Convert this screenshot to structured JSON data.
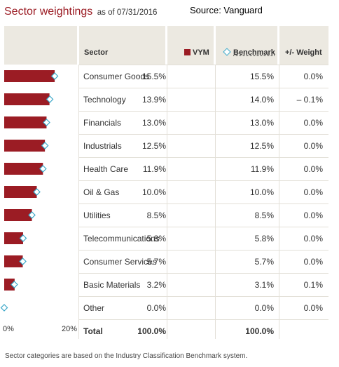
{
  "header": {
    "title": "Sector weightings",
    "as_of": "as of 07/31/2016",
    "source": "Source: Vanguard"
  },
  "columns": {
    "sector": "Sector",
    "vym": "VYM",
    "benchmark": "Benchmark",
    "diff": "+/- Weight"
  },
  "colors": {
    "vym_bar": "#9b1c24",
    "benchmark_marker": "#3aa7c8",
    "header_bg": "#ece9e1",
    "title": "#9b1c24"
  },
  "chart_data": {
    "type": "bar",
    "orientation": "horizontal",
    "xlim": [
      0,
      20
    ],
    "x_tick_labels": [
      "0%",
      "20%"
    ],
    "categories": [
      "Consumer Goods",
      "Technology",
      "Financials",
      "Industrials",
      "Health Care",
      "Oil & Gas",
      "Utilities",
      "Telecommunications",
      "Consumer Services",
      "Basic Materials",
      "Other"
    ],
    "series": [
      {
        "name": "VYM",
        "kind": "bar",
        "values": [
          15.5,
          13.9,
          13.0,
          12.5,
          11.9,
          10.0,
          8.5,
          5.8,
          5.7,
          3.2,
          0.0
        ]
      },
      {
        "name": "Benchmark",
        "kind": "diamond-marker",
        "values": [
          15.5,
          14.0,
          13.0,
          12.5,
          11.9,
          10.0,
          8.5,
          5.8,
          5.7,
          3.1,
          0.0
        ]
      }
    ]
  },
  "rows": [
    {
      "sector": "Consumer Goods",
      "vym": "15.5%",
      "benchmark": "15.5%",
      "diff": "0.0%"
    },
    {
      "sector": "Technology",
      "vym": "13.9%",
      "benchmark": "14.0%",
      "diff": "– 0.1%"
    },
    {
      "sector": "Financials",
      "vym": "13.0%",
      "benchmark": "13.0%",
      "diff": "0.0%"
    },
    {
      "sector": "Industrials",
      "vym": "12.5%",
      "benchmark": "12.5%",
      "diff": "0.0%"
    },
    {
      "sector": "Health Care",
      "vym": "11.9%",
      "benchmark": "11.9%",
      "diff": "0.0%"
    },
    {
      "sector": "Oil & Gas",
      "vym": "10.0%",
      "benchmark": "10.0%",
      "diff": "0.0%"
    },
    {
      "sector": "Utilities",
      "vym": "8.5%",
      "benchmark": "8.5%",
      "diff": "0.0%"
    },
    {
      "sector": "Telecommunications",
      "vym": "5.8%",
      "benchmark": "5.8%",
      "diff": "0.0%"
    },
    {
      "sector": "Consumer Services",
      "vym": "5.7%",
      "benchmark": "5.7%",
      "diff": "0.0%"
    },
    {
      "sector": "Basic Materials",
      "vym": "3.2%",
      "benchmark": "3.1%",
      "diff": "0.1%"
    },
    {
      "sector": "Other",
      "vym": "0.0%",
      "benchmark": "0.0%",
      "diff": "0.0%"
    }
  ],
  "total": {
    "label": "Total",
    "vym": "100.0%",
    "benchmark": "100.0%"
  },
  "footnote": "Sector categories are based on the Industry Classification Benchmark system."
}
